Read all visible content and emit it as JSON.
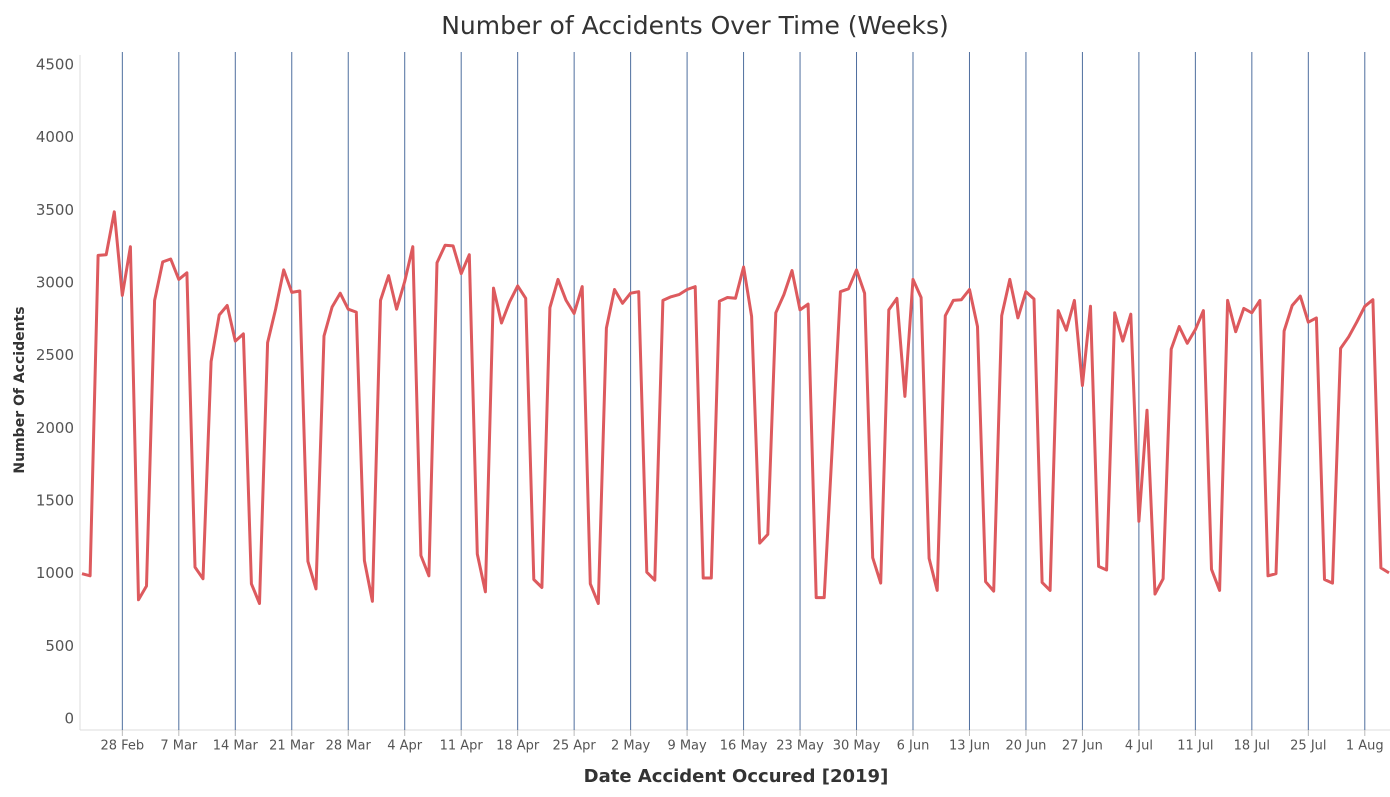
{
  "chart_data": {
    "type": "line",
    "title": "Number of Accidents Over Time (Weeks)",
    "x_label": "Date Accident Occured [2019]",
    "y_label": "Number Of Accidents",
    "color": "#dd5a5e",
    "grid_color": "#4e6e9e",
    "x": [
      "2019-02-23",
      "2019-02-24",
      "2019-02-25",
      "2019-02-26",
      "2019-02-27",
      "2019-02-28",
      "2019-03-01",
      "2019-03-02",
      "2019-03-03",
      "2019-03-04",
      "2019-03-05",
      "2019-03-06",
      "2019-03-07",
      "2019-03-08",
      "2019-03-09",
      "2019-03-10",
      "2019-03-11",
      "2019-03-12",
      "2019-03-13",
      "2019-03-14",
      "2019-03-15",
      "2019-03-16",
      "2019-03-17",
      "2019-03-18",
      "2019-03-19",
      "2019-03-20",
      "2019-03-21",
      "2019-03-22",
      "2019-03-23",
      "2019-03-24",
      "2019-03-25",
      "2019-03-26",
      "2019-03-27",
      "2019-03-28",
      "2019-03-29",
      "2019-03-30",
      "2019-03-31",
      "2019-04-01",
      "2019-04-02",
      "2019-04-03",
      "2019-04-04",
      "2019-04-05",
      "2019-04-06",
      "2019-04-07",
      "2019-04-08",
      "2019-04-09",
      "2019-04-10",
      "2019-04-11",
      "2019-04-12",
      "2019-04-13",
      "2019-04-14",
      "2019-04-15",
      "2019-04-16",
      "2019-04-17",
      "2019-04-18",
      "2019-04-19",
      "2019-04-20",
      "2019-04-21",
      "2019-04-22",
      "2019-04-23",
      "2019-04-24",
      "2019-04-25",
      "2019-04-26",
      "2019-04-27",
      "2019-04-28",
      "2019-04-29",
      "2019-04-30",
      "2019-05-01",
      "2019-05-02",
      "2019-05-03",
      "2019-05-04",
      "2019-05-05",
      "2019-05-06",
      "2019-05-07",
      "2019-05-08",
      "2019-05-09",
      "2019-05-10",
      "2019-05-11",
      "2019-05-12",
      "2019-05-13",
      "2019-05-14",
      "2019-05-15",
      "2019-05-16",
      "2019-05-17",
      "2019-05-18",
      "2019-05-19",
      "2019-05-20",
      "2019-05-21",
      "2019-05-22",
      "2019-05-23",
      "2019-05-24",
      "2019-05-25",
      "2019-05-26",
      "2019-05-27",
      "2019-05-28",
      "2019-05-29",
      "2019-05-30",
      "2019-05-31",
      "2019-06-01",
      "2019-06-02",
      "2019-06-03",
      "2019-06-04",
      "2019-06-05",
      "2019-06-06",
      "2019-06-07",
      "2019-06-08",
      "2019-06-09",
      "2019-06-10",
      "2019-06-11",
      "2019-06-12",
      "2019-06-13",
      "2019-06-14",
      "2019-06-15",
      "2019-06-16",
      "2019-06-17",
      "2019-06-18",
      "2019-06-19",
      "2019-06-20",
      "2019-06-21",
      "2019-06-22",
      "2019-06-23",
      "2019-06-24",
      "2019-06-25",
      "2019-06-26",
      "2019-06-27",
      "2019-06-28",
      "2019-06-29",
      "2019-06-30",
      "2019-07-01",
      "2019-07-02",
      "2019-07-03",
      "2019-07-04",
      "2019-07-05",
      "2019-07-06",
      "2019-07-07",
      "2019-07-08",
      "2019-07-09",
      "2019-07-10",
      "2019-07-11",
      "2019-07-12",
      "2019-07-13",
      "2019-07-14",
      "2019-07-15",
      "2019-07-16",
      "2019-07-17",
      "2019-07-18",
      "2019-07-19",
      "2019-07-20",
      "2019-07-21",
      "2019-07-22",
      "2019-07-23",
      "2019-07-24",
      "2019-07-25",
      "2019-07-26",
      "2019-07-27",
      "2019-07-28",
      "2019-07-29",
      "2019-07-30",
      "2019-07-31",
      "2019-08-01",
      "2019-08-02",
      "2019-08-03",
      "2019-08-04"
    ],
    "values": [
      1000,
      985,
      3190,
      3195,
      3490,
      2915,
      3250,
      820,
      915,
      2880,
      3145,
      3165,
      3025,
      3070,
      1045,
      965,
      2460,
      2780,
      2845,
      2600,
      2650,
      930,
      795,
      2590,
      2820,
      3090,
      2935,
      2945,
      1085,
      895,
      2635,
      2835,
      2930,
      2820,
      2800,
      1090,
      810,
      2880,
      3050,
      2820,
      3010,
      3250,
      1125,
      985,
      3140,
      3260,
      3255,
      3065,
      3195,
      1135,
      875,
      2965,
      2725,
      2870,
      2980,
      2895,
      960,
      905,
      2830,
      3025,
      2880,
      2790,
      2975,
      930,
      795,
      2690,
      2955,
      2860,
      2930,
      2940,
      1010,
      955,
      2880,
      2905,
      2920,
      2955,
      2975,
      970,
      970,
      2875,
      2900,
      2895,
      3110,
      2770,
      1210,
      1270,
      2795,
      2920,
      3085,
      2815,
      2855,
      835,
      835,
      1880,
      2940,
      2960,
      3090,
      2930,
      1110,
      935,
      2815,
      2895,
      2220,
      3025,
      2900,
      1105,
      885,
      2775,
      2880,
      2885,
      2955,
      2700,
      945,
      880,
      2775,
      3025,
      2760,
      2940,
      2890,
      940,
      885,
      2810,
      2675,
      2880,
      2295,
      2840,
      1050,
      1025,
      2795,
      2600,
      2785,
      1360,
      2125,
      860,
      965,
      2545,
      2700,
      2585,
      2680,
      2810,
      1030,
      885,
      2880,
      2665,
      2825,
      2795,
      2880,
      985,
      1000,
      2670,
      2845,
      2910,
      2730,
      2760,
      960,
      935,
      2550,
      2630,
      2730,
      2840,
      2885,
      1040,
      1005
    ],
    "xlim": [
      "2019-02-23",
      "2019-08-04"
    ],
    "xticks": [
      {
        "value": "2019-02-28",
        "label": "28 Feb"
      },
      {
        "value": "2019-03-07",
        "label": "7 Mar"
      },
      {
        "value": "2019-03-14",
        "label": "14 Mar"
      },
      {
        "value": "2019-03-21",
        "label": "21 Mar"
      },
      {
        "value": "2019-03-28",
        "label": "28 Mar"
      },
      {
        "value": "2019-04-04",
        "label": "4 Apr"
      },
      {
        "value": "2019-04-11",
        "label": "11 Apr"
      },
      {
        "value": "2019-04-18",
        "label": "18 Apr"
      },
      {
        "value": "2019-04-25",
        "label": "25 Apr"
      },
      {
        "value": "2019-05-02",
        "label": "2 May"
      },
      {
        "value": "2019-05-09",
        "label": "9 May"
      },
      {
        "value": "2019-05-16",
        "label": "16 May"
      },
      {
        "value": "2019-05-23",
        "label": "23 May"
      },
      {
        "value": "2019-05-30",
        "label": "30 May"
      },
      {
        "value": "2019-06-06",
        "label": "6 Jun"
      },
      {
        "value": "2019-06-13",
        "label": "13 Jun"
      },
      {
        "value": "2019-06-20",
        "label": "20 Jun"
      },
      {
        "value": "2019-06-27",
        "label": "27 Jun"
      },
      {
        "value": "2019-07-04",
        "label": "4 Jul"
      },
      {
        "value": "2019-07-11",
        "label": "11 Jul"
      },
      {
        "value": "2019-07-18",
        "label": "18 Jul"
      },
      {
        "value": "2019-07-25",
        "label": "25 Jul"
      },
      {
        "value": "2019-08-01",
        "label": "1 Aug"
      }
    ],
    "ylim": [
      0,
      4500
    ],
    "yticks": [
      0,
      500,
      1000,
      1500,
      2000,
      2500,
      3000,
      3500,
      4000,
      4500
    ],
    "grid": true
  }
}
